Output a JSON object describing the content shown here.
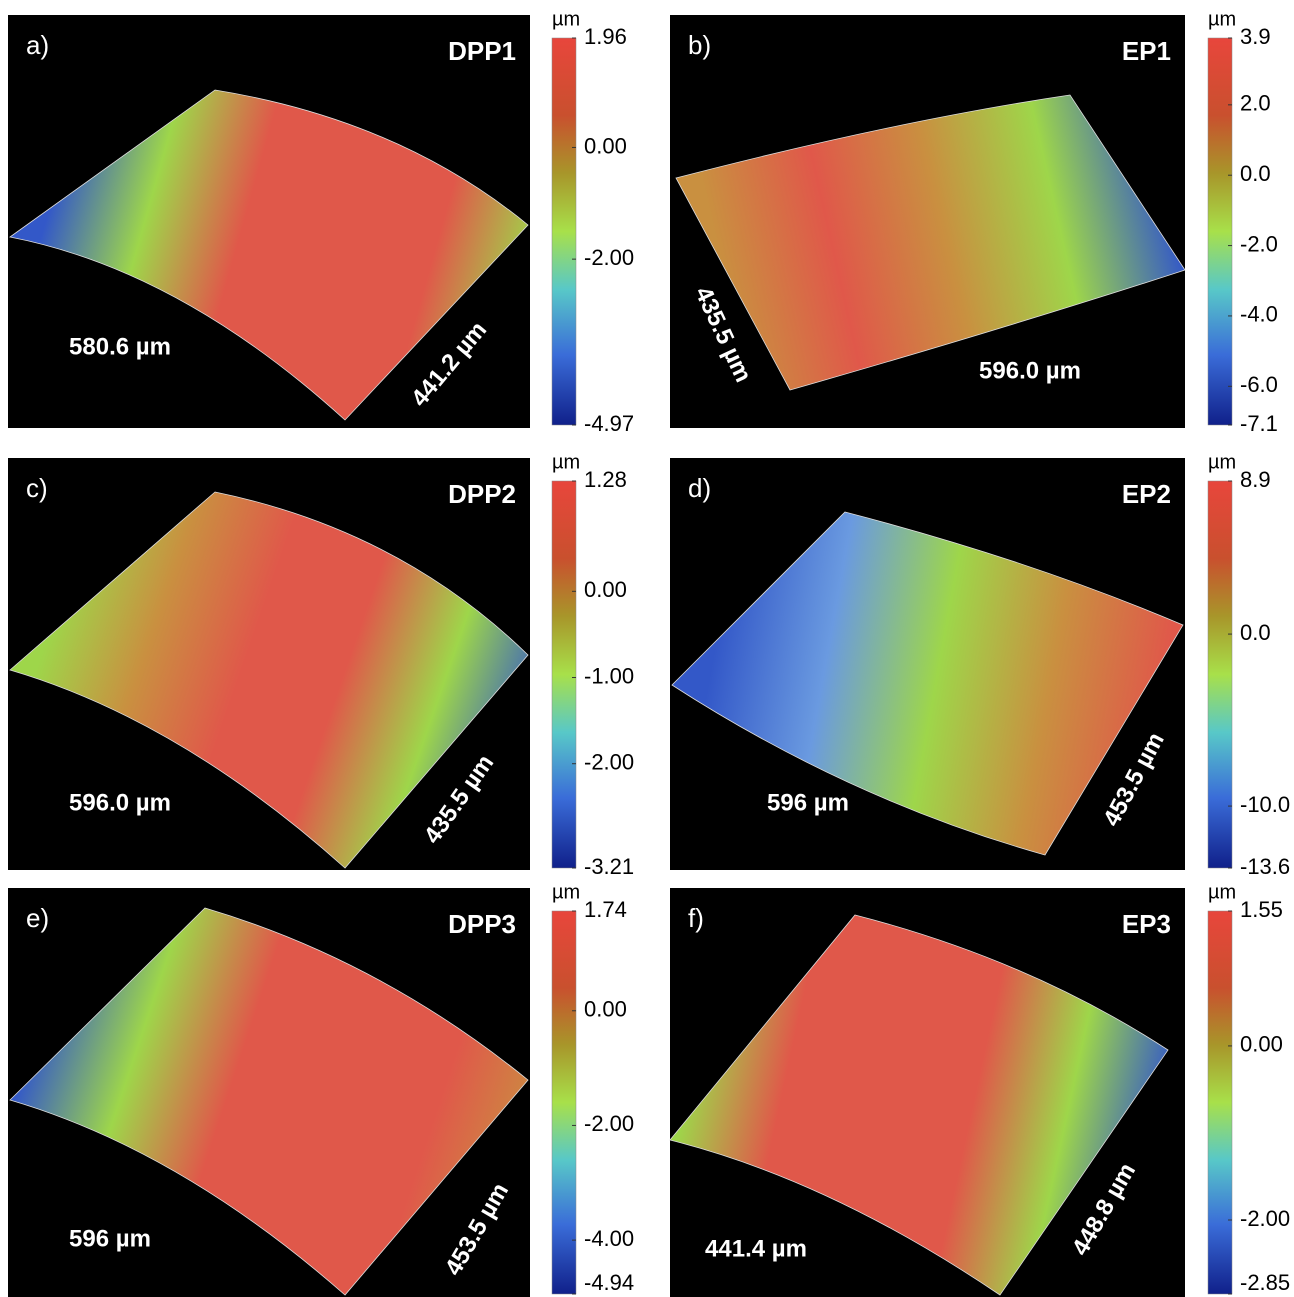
{
  "panels": [
    {
      "label": "a)",
      "name": "DPP1",
      "dimensions": [
        "580.6 µm",
        "441.2 µm"
      ],
      "colorbar": {
        "unit": "µm",
        "ticks": [
          1.96,
          {
            "value": 0,
            "label": "0.00"
          },
          {
            "value": -2,
            "label": "-2.00"
          },
          -4.97
        ]
      }
    },
    {
      "label": "b)",
      "name": "EP1",
      "dimensions": [
        "435.5 µm",
        "596.0 µm"
      ],
      "colorbar": {
        "unit": "µm",
        "ticks": [
          3.9,
          {
            "value": 2,
            "label": "2.0"
          },
          {
            "value": 0,
            "label": "0.0"
          },
          {
            "value": -2,
            "label": "-2.0"
          },
          {
            "value": -4,
            "label": "-4.0"
          },
          {
            "value": -6,
            "label": "-6.0"
          },
          -7.1
        ]
      }
    },
    {
      "label": "c)",
      "name": "DPP2",
      "dimensions": [
        "596.0 µm",
        "435.5 µm"
      ],
      "colorbar": {
        "unit": "µm",
        "ticks": [
          1.28,
          {
            "value": 0,
            "label": "0.00"
          },
          {
            "value": -1,
            "label": "-1.00"
          },
          {
            "value": -2,
            "label": "-2.00"
          },
          -3.21
        ]
      }
    },
    {
      "label": "d)",
      "name": "EP2",
      "dimensions": [
        "596 µm",
        "453.5 µm"
      ],
      "colorbar": {
        "unit": "µm",
        "ticks": [
          8.9,
          {
            "value": 0,
            "label": "0.0"
          },
          {
            "value": -10,
            "label": "-10.0"
          },
          -13.6
        ]
      }
    },
    {
      "label": "e)",
      "name": "DPP3",
      "dimensions": [
        "596 µm",
        "453.5 µm"
      ],
      "colorbar": {
        "unit": "µm",
        "ticks": [
          1.74,
          {
            "value": 0,
            "label": "0.00"
          },
          {
            "value": -2,
            "label": "-2.00"
          },
          {
            "value": -4,
            "label": "-4.00"
          },
          -4.94
        ]
      }
    },
    {
      "label": "f)",
      "name": "EP3",
      "dimensions": [
        "441.4 µm",
        "448.8 µm"
      ],
      "colorbar": {
        "unit": "µm",
        "ticks": [
          1.55,
          {
            "value": 0,
            "label": "0.00"
          },
          {
            "value": -2,
            "label": "-2.00"
          },
          -2.85
        ]
      }
    }
  ]
}
